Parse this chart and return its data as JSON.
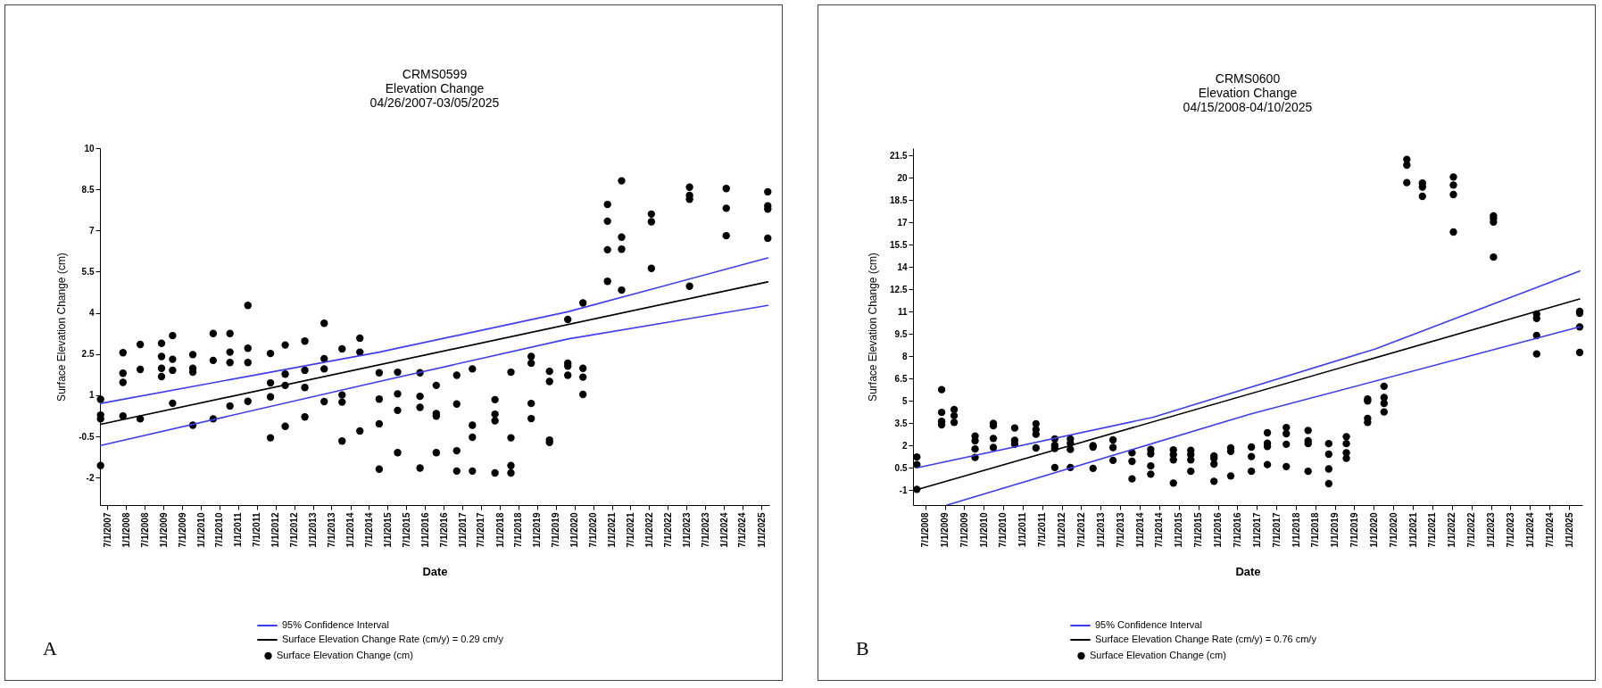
{
  "chart_data": [
    {
      "type": "scatter",
      "title": "CRMS0599\nElevation Change\n04/26/2007-03/05/2025",
      "xlabel": "Date",
      "ylabel": "Surface Elevation Change (cm)",
      "annotations": [
        "A"
      ],
      "grid": false,
      "legend": "bottom",
      "marker": "circle",
      "line_style": "solid",
      "xlim": [
        "2007-04-20",
        "2025-03-20"
      ],
      "ylim": [
        -3,
        10
      ],
      "yticks": [
        -2,
        -0.5,
        1,
        2.5,
        4,
        5.5,
        7,
        8.5,
        10
      ],
      "xticks": [
        {
          "value": "2007-07-01",
          "label": "7/1/2007"
        },
        {
          "value": "2008-01-01",
          "label": "1/1/2008"
        },
        {
          "value": "2008-07-01",
          "label": "7/1/2008"
        },
        {
          "value": "2009-01-01",
          "label": "1/1/2009"
        },
        {
          "value": "2009-07-01",
          "label": "7/1/2009"
        },
        {
          "value": "2010-01-01",
          "label": "1/1/2010"
        },
        {
          "value": "2010-07-01",
          "label": "7/1/2010"
        },
        {
          "value": "2011-01-01",
          "label": "1/1/2011"
        },
        {
          "value": "2011-07-01",
          "label": "7/1/2011"
        },
        {
          "value": "2012-01-01",
          "label": "1/1/2012"
        },
        {
          "value": "2012-07-01",
          "label": "7/1/2012"
        },
        {
          "value": "2013-01-01",
          "label": "1/1/2013"
        },
        {
          "value": "2013-07-01",
          "label": "7/1/2013"
        },
        {
          "value": "2014-01-01",
          "label": "1/1/2014"
        },
        {
          "value": "2014-07-01",
          "label": "7/1/2014"
        },
        {
          "value": "2015-01-01",
          "label": "1/1/2015"
        },
        {
          "value": "2015-07-01",
          "label": "7/1/2015"
        },
        {
          "value": "2016-01-01",
          "label": "1/1/2016"
        },
        {
          "value": "2016-07-01",
          "label": "7/1/2016"
        },
        {
          "value": "2017-01-01",
          "label": "1/1/2017"
        },
        {
          "value": "2017-07-01",
          "label": "7/1/2017"
        },
        {
          "value": "2018-01-01",
          "label": "1/1/2018"
        },
        {
          "value": "2018-07-01",
          "label": "7/1/2018"
        },
        {
          "value": "2019-01-01",
          "label": "1/1/2019"
        },
        {
          "value": "2019-07-01",
          "label": "7/1/2019"
        },
        {
          "value": "2020-01-01",
          "label": "1/1/2020"
        },
        {
          "value": "2020-07-01",
          "label": "7/1/2020"
        },
        {
          "value": "2021-01-01",
          "label": "1/1/2021"
        },
        {
          "value": "2021-07-01",
          "label": "7/1/2021"
        },
        {
          "value": "2022-01-01",
          "label": "1/1/2022"
        },
        {
          "value": "2022-07-01",
          "label": "7/1/2022"
        },
        {
          "value": "2023-01-01",
          "label": "1/1/2023"
        },
        {
          "value": "2023-07-01",
          "label": "7/1/2023"
        },
        {
          "value": "2024-01-01",
          "label": "1/1/2024"
        },
        {
          "value": "2024-07-01",
          "label": "7/1/2024"
        },
        {
          "value": "2025-01-01",
          "label": "1/1/2025"
        }
      ],
      "series": [
        {
          "name": "Surface Elevation Change (cm)",
          "type": "scatter",
          "color": "#000000",
          "x": [
            "2007-04-26",
            "2007-04-26",
            "2007-04-26",
            "2007-04-26",
            "2007-12-01",
            "2007-12-01",
            "2007-12-01",
            "2007-12-01",
            "2008-05-18",
            "2008-05-18",
            "2008-05-18",
            "2008-12-12",
            "2008-12-12",
            "2008-12-12",
            "2008-12-12",
            "2009-03-30",
            "2009-03-30",
            "2009-03-30",
            "2009-03-30",
            "2009-10-14",
            "2009-10-14",
            "2009-10-14",
            "2009-10-14",
            "2010-05-01",
            "2010-05-01",
            "2010-05-01",
            "2010-10-12",
            "2010-10-12",
            "2010-10-12",
            "2010-10-12",
            "2011-04-05",
            "2011-04-05",
            "2011-04-05",
            "2011-04-05",
            "2011-11-12",
            "2011-11-12",
            "2011-11-12",
            "2011-11-12",
            "2012-04-04",
            "2012-04-04",
            "2012-04-04",
            "2012-04-04",
            "2012-10-13",
            "2012-10-13",
            "2012-10-13",
            "2012-10-13",
            "2013-04-20",
            "2013-04-20",
            "2013-04-20",
            "2013-04-20",
            "2013-10-12",
            "2013-10-12",
            "2013-10-12",
            "2013-10-12",
            "2014-04-04",
            "2014-04-04",
            "2014-04-04",
            "2014-10-10",
            "2014-10-10",
            "2014-10-10",
            "2014-10-10",
            "2015-04-08",
            "2015-04-08",
            "2015-04-08",
            "2015-04-08",
            "2015-11-13",
            "2015-11-13",
            "2015-11-13",
            "2015-11-13",
            "2016-04-20",
            "2016-04-20",
            "2016-04-20",
            "2016-04-20",
            "2016-11-06",
            "2016-11-06",
            "2016-11-06",
            "2016-11-06",
            "2017-04-08",
            "2017-04-08",
            "2017-04-08",
            "2017-04-08",
            "2017-11-15",
            "2017-11-15",
            "2017-11-15",
            "2017-11-15",
            "2018-04-20",
            "2018-04-20",
            "2018-04-20",
            "2018-04-20",
            "2018-11-04",
            "2018-11-04",
            "2018-11-04",
            "2018-11-04",
            "2019-05-02",
            "2019-05-02",
            "2019-05-02",
            "2019-05-02",
            "2019-10-28",
            "2019-10-28",
            "2019-10-28",
            "2019-10-28",
            "2020-03-24",
            "2020-03-24",
            "2020-03-24",
            "2020-03-24",
            "2020-11-19",
            "2020-11-19",
            "2020-11-19",
            "2020-11-19",
            "2021-04-06",
            "2021-04-06",
            "2021-04-06",
            "2021-04-06",
            "2022-01-22",
            "2022-01-22",
            "2022-01-22",
            "2023-01-30",
            "2023-01-30",
            "2023-01-30",
            "2023-01-30",
            "2024-01-24",
            "2024-01-24",
            "2024-01-24",
            "2025-03-05",
            "2025-03-05",
            "2025-03-05",
            "2025-03-05"
          ],
          "values": [
            0.85,
            0.28,
            0.14,
            -1.56,
            2.55,
            1.8,
            1.47,
            0.24,
            2.85,
            1.94,
            0.14,
            2.89,
            2.41,
            1.98,
            1.68,
            3.17,
            2.31,
            1.91,
            0.71,
            2.48,
            1.98,
            1.84,
            -0.09,
            3.25,
            2.27,
            0.14,
            3.25,
            2.57,
            2.19,
            0.61,
            4.27,
            2.71,
            2.19,
            0.78,
            2.52,
            1.45,
            0.94,
            -0.55,
            2.83,
            1.77,
            1.36,
            -0.13,
            2.97,
            1.91,
            1.28,
            0.21,
            3.62,
            2.33,
            1.96,
            0.77,
            2.69,
            1.01,
            0.75,
            -0.67,
            3.08,
            2.57,
            -0.3,
            1.82,
            0.86,
            -0.04,
            -1.69,
            1.84,
            1.05,
            0.45,
            -1.09,
            1.82,
            0.96,
            0.56,
            -1.65,
            1.36,
            0.33,
            0.24,
            -1.09,
            1.73,
            0.68,
            -1.02,
            -1.76,
            1.96,
            -0.09,
            -0.53,
            -1.76,
            0.84,
            0.31,
            0.07,
            -1.83,
            1.84,
            -0.55,
            -1.56,
            -1.83,
            2.41,
            2.17,
            0.7,
            0.15,
            1.87,
            1.5,
            -0.63,
            -0.72,
            3.76,
            2.17,
            2.06,
            1.73,
            4.36,
            1.98,
            1.66,
            1.03,
            7.95,
            7.34,
            6.3,
            5.15,
            8.81,
            6.76,
            6.32,
            4.83,
            7.6,
            7.32,
            5.62,
            8.58,
            8.28,
            8.14,
            4.97,
            8.53,
            7.81,
            6.81,
            8.41,
            7.9,
            7.78,
            6.72
          ]
        },
        {
          "name": "95% Confidence Interval",
          "type": "line",
          "marker": "none",
          "color": "#3c3cf0",
          "x": [
            "2007-04-26",
            "2014-10-10",
            "2019-10-28",
            "2025-03-05"
          ],
          "values": [
            0.7,
            2.57,
            4.04,
            6.0
          ]
        },
        {
          "type": "line",
          "marker": "none",
          "color": "#3c3cf0",
          "x": [
            "2007-04-26",
            "2014-10-10",
            "2019-10-28",
            "2025-03-05"
          ],
          "values": [
            -0.83,
            1.5,
            3.05,
            4.27
          ]
        },
        {
          "name": "Surface Elevation Change Rate (cm/y) = 0.29 cm/y",
          "type": "line",
          "marker": "none",
          "color": "#000000",
          "x": [
            "2007-04-26",
            "2025-03-05"
          ],
          "values": [
            -0.06,
            5.13
          ]
        }
      ]
    },
    {
      "type": "scatter",
      "title": "CRMS0600\nElevation Change\n04/15/2008-04/10/2025",
      "xlabel": "Date",
      "ylabel": "Surface Elevation Change (cm)",
      "annotations": [
        "B"
      ],
      "grid": false,
      "legend": "bottom",
      "marker": "circle",
      "line_style": "solid",
      "xlim": [
        "2008-03-10",
        "2025-05-05"
      ],
      "ylim": [
        -2,
        22
      ],
      "yticks": [
        -1,
        0.5,
        2,
        3.5,
        5,
        6.5,
        8,
        9.5,
        11,
        12.5,
        14,
        15.5,
        17,
        18.5,
        20,
        21.5
      ],
      "xticks": [
        {
          "value": "2008-07-01",
          "label": "7/1/2008"
        },
        {
          "value": "2009-01-01",
          "label": "1/1/2009"
        },
        {
          "value": "2009-07-01",
          "label": "7/1/2009"
        },
        {
          "value": "2010-01-01",
          "label": "1/1/2010"
        },
        {
          "value": "2010-07-01",
          "label": "7/1/2010"
        },
        {
          "value": "2011-01-01",
          "label": "1/1/2011"
        },
        {
          "value": "2011-07-01",
          "label": "7/1/2011"
        },
        {
          "value": "2012-01-01",
          "label": "1/1/2012"
        },
        {
          "value": "2012-07-01",
          "label": "7/1/2012"
        },
        {
          "value": "2013-01-01",
          "label": "1/1/2013"
        },
        {
          "value": "2013-07-01",
          "label": "7/1/2013"
        },
        {
          "value": "2014-01-01",
          "label": "1/1/2014"
        },
        {
          "value": "2014-07-01",
          "label": "7/1/2014"
        },
        {
          "value": "2015-01-01",
          "label": "1/1/2015"
        },
        {
          "value": "2015-07-01",
          "label": "7/1/2015"
        },
        {
          "value": "2016-01-01",
          "label": "1/1/2016"
        },
        {
          "value": "2016-07-01",
          "label": "7/1/2016"
        },
        {
          "value": "2017-01-01",
          "label": "1/1/2017"
        },
        {
          "value": "2017-07-01",
          "label": "7/1/2017"
        },
        {
          "value": "2018-01-01",
          "label": "1/1/2018"
        },
        {
          "value": "2018-07-01",
          "label": "7/1/2018"
        },
        {
          "value": "2019-01-01",
          "label": "1/1/2019"
        },
        {
          "value": "2019-07-01",
          "label": "7/1/2019"
        },
        {
          "value": "2020-01-01",
          "label": "1/1/2020"
        },
        {
          "value": "2020-07-01",
          "label": "7/1/2020"
        },
        {
          "value": "2021-01-01",
          "label": "1/1/2021"
        },
        {
          "value": "2021-07-01",
          "label": "7/1/2021"
        },
        {
          "value": "2022-01-01",
          "label": "1/1/2022"
        },
        {
          "value": "2022-07-01",
          "label": "7/1/2022"
        },
        {
          "value": "2023-01-01",
          "label": "1/1/2023"
        },
        {
          "value": "2023-07-01",
          "label": "7/1/2023"
        },
        {
          "value": "2024-01-01",
          "label": "1/1/2024"
        },
        {
          "value": "2024-07-01",
          "label": "7/1/2024"
        },
        {
          "value": "2025-01-01",
          "label": "1/1/2025"
        }
      ],
      "series": [
        {
          "name": "Surface Elevation Change (cm)",
          "type": "scatter",
          "color": "#000000",
          "x": [
            "2008-04-15",
            "2008-04-15",
            "2008-04-15",
            "2008-12-03",
            "2008-12-03",
            "2008-12-03",
            "2008-12-03",
            "2009-03-30",
            "2009-03-30",
            "2009-03-30",
            "2009-10-12",
            "2009-10-12",
            "2009-10-12",
            "2009-10-12",
            "2010-04-01",
            "2010-04-01",
            "2010-04-01",
            "2010-04-01",
            "2010-10-18",
            "2010-10-18",
            "2010-10-18",
            "2011-05-05",
            "2011-05-05",
            "2011-05-05",
            "2011-05-05",
            "2011-10-28",
            "2011-10-28",
            "2011-10-28",
            "2011-10-28",
            "2012-03-22",
            "2012-03-22",
            "2012-03-22",
            "2012-03-22",
            "2012-10-20",
            "2012-10-20",
            "2012-10-20",
            "2013-04-25",
            "2013-04-25",
            "2013-04-25",
            "2013-10-20",
            "2013-10-20",
            "2013-10-20",
            "2014-04-13",
            "2014-04-13",
            "2014-04-13",
            "2014-04-13",
            "2014-11-11",
            "2014-11-11",
            "2014-11-11",
            "2014-11-11",
            "2015-04-23",
            "2015-04-23",
            "2015-04-23",
            "2015-04-23",
            "2015-11-26",
            "2015-11-26",
            "2015-11-26",
            "2015-11-26",
            "2016-05-01",
            "2016-05-01",
            "2016-05-01",
            "2016-11-10",
            "2016-11-10",
            "2016-11-10",
            "2017-04-09",
            "2017-04-09",
            "2017-04-09",
            "2017-04-09",
            "2017-10-03",
            "2017-10-03",
            "2017-10-03",
            "2017-10-03",
            "2018-04-25",
            "2018-04-25",
            "2018-04-25",
            "2018-04-25",
            "2018-11-04",
            "2018-11-04",
            "2018-11-04",
            "2018-11-04",
            "2019-04-18",
            "2019-04-18",
            "2019-04-18",
            "2019-04-18",
            "2019-11-03",
            "2019-11-03",
            "2019-11-03",
            "2019-11-03",
            "2020-04-05",
            "2020-04-05",
            "2020-04-05",
            "2020-04-05",
            "2020-11-04",
            "2020-11-04",
            "2020-11-04",
            "2021-03-30",
            "2021-03-30",
            "2021-03-30",
            "2022-01-14",
            "2022-01-14",
            "2022-01-14",
            "2022-01-14",
            "2023-01-24",
            "2023-01-24",
            "2023-01-24",
            "2023-01-24",
            "2024-03-03",
            "2024-03-03",
            "2024-03-03",
            "2024-03-03",
            "2025-04-10",
            "2025-04-10",
            "2025-04-10",
            "2025-04-10"
          ],
          "values": [
            1.23,
            0.72,
            -0.94,
            5.76,
            4.23,
            3.63,
            3.4,
            4.42,
            4.01,
            3.56,
            2.64,
            2.32,
            1.77,
            1.2,
            3.5,
            3.34,
            2.48,
            1.87,
            3.18,
            2.35,
            2.09,
            3.47,
            3.08,
            2.76,
            1.84,
            2.45,
            2.03,
            1.81,
            0.53,
            2.45,
            2.16,
            1.74,
            0.53,
            2.0,
            1.9,
            0.47,
            2.38,
            1.87,
            1.01,
            1.52,
            0.94,
            -0.24,
            1.74,
            1.45,
            0.63,
            0.08,
            1.71,
            1.39,
            1.04,
            -0.52,
            1.68,
            1.39,
            1.04,
            0.27,
            1.3,
            1.14,
            0.76,
            -0.4,
            1.84,
            1.61,
            -0.04,
            1.9,
            1.26,
            0.27,
            2.86,
            2.16,
            1.94,
            0.72,
            3.21,
            2.8,
            2.09,
            0.59,
            3.02,
            2.32,
            2.13,
            0.27,
            2.13,
            1.42,
            0.43,
            -0.56,
            2.6,
            2.13,
            1.52,
            1.14,
            5.13,
            5.0,
            3.82,
            3.56,
            5.99,
            5.23,
            4.84,
            4.26,
            21.24,
            20.86,
            19.68,
            19.65,
            19.39,
            18.76,
            20.06,
            19.52,
            18.88,
            16.36,
            17.45,
            17.29,
            17.03,
            14.67,
            10.84,
            10.55,
            9.4,
            8.16,
            11.03,
            10.9,
            9.98,
            8.26
          ]
        },
        {
          "name": "95% Confidence Interval",
          "type": "line",
          "marker": "none",
          "color": "#3c3cf0",
          "x": [
            "2008-04-15",
            "2014-05-01",
            "2020-01-15",
            "2025-04-10"
          ],
          "values": [
            0.5,
            3.9,
            8.5,
            13.74
          ]
        },
        {
          "type": "line",
          "marker": "none",
          "color": "#3c3cf0",
          "x": [
            "2009-01-22",
            "2016-10-24",
            "2025-04-10"
          ],
          "values": [
            -2.0,
            4.1,
            9.98
          ]
        },
        {
          "name": "Surface Elevation Change Rate (cm/y) = 0.76 cm/y",
          "type": "line",
          "marker": "none",
          "color": "#000000",
          "x": [
            "2008-04-15",
            "2025-04-10"
          ],
          "values": [
            -0.97,
            11.86
          ]
        }
      ]
    }
  ]
}
